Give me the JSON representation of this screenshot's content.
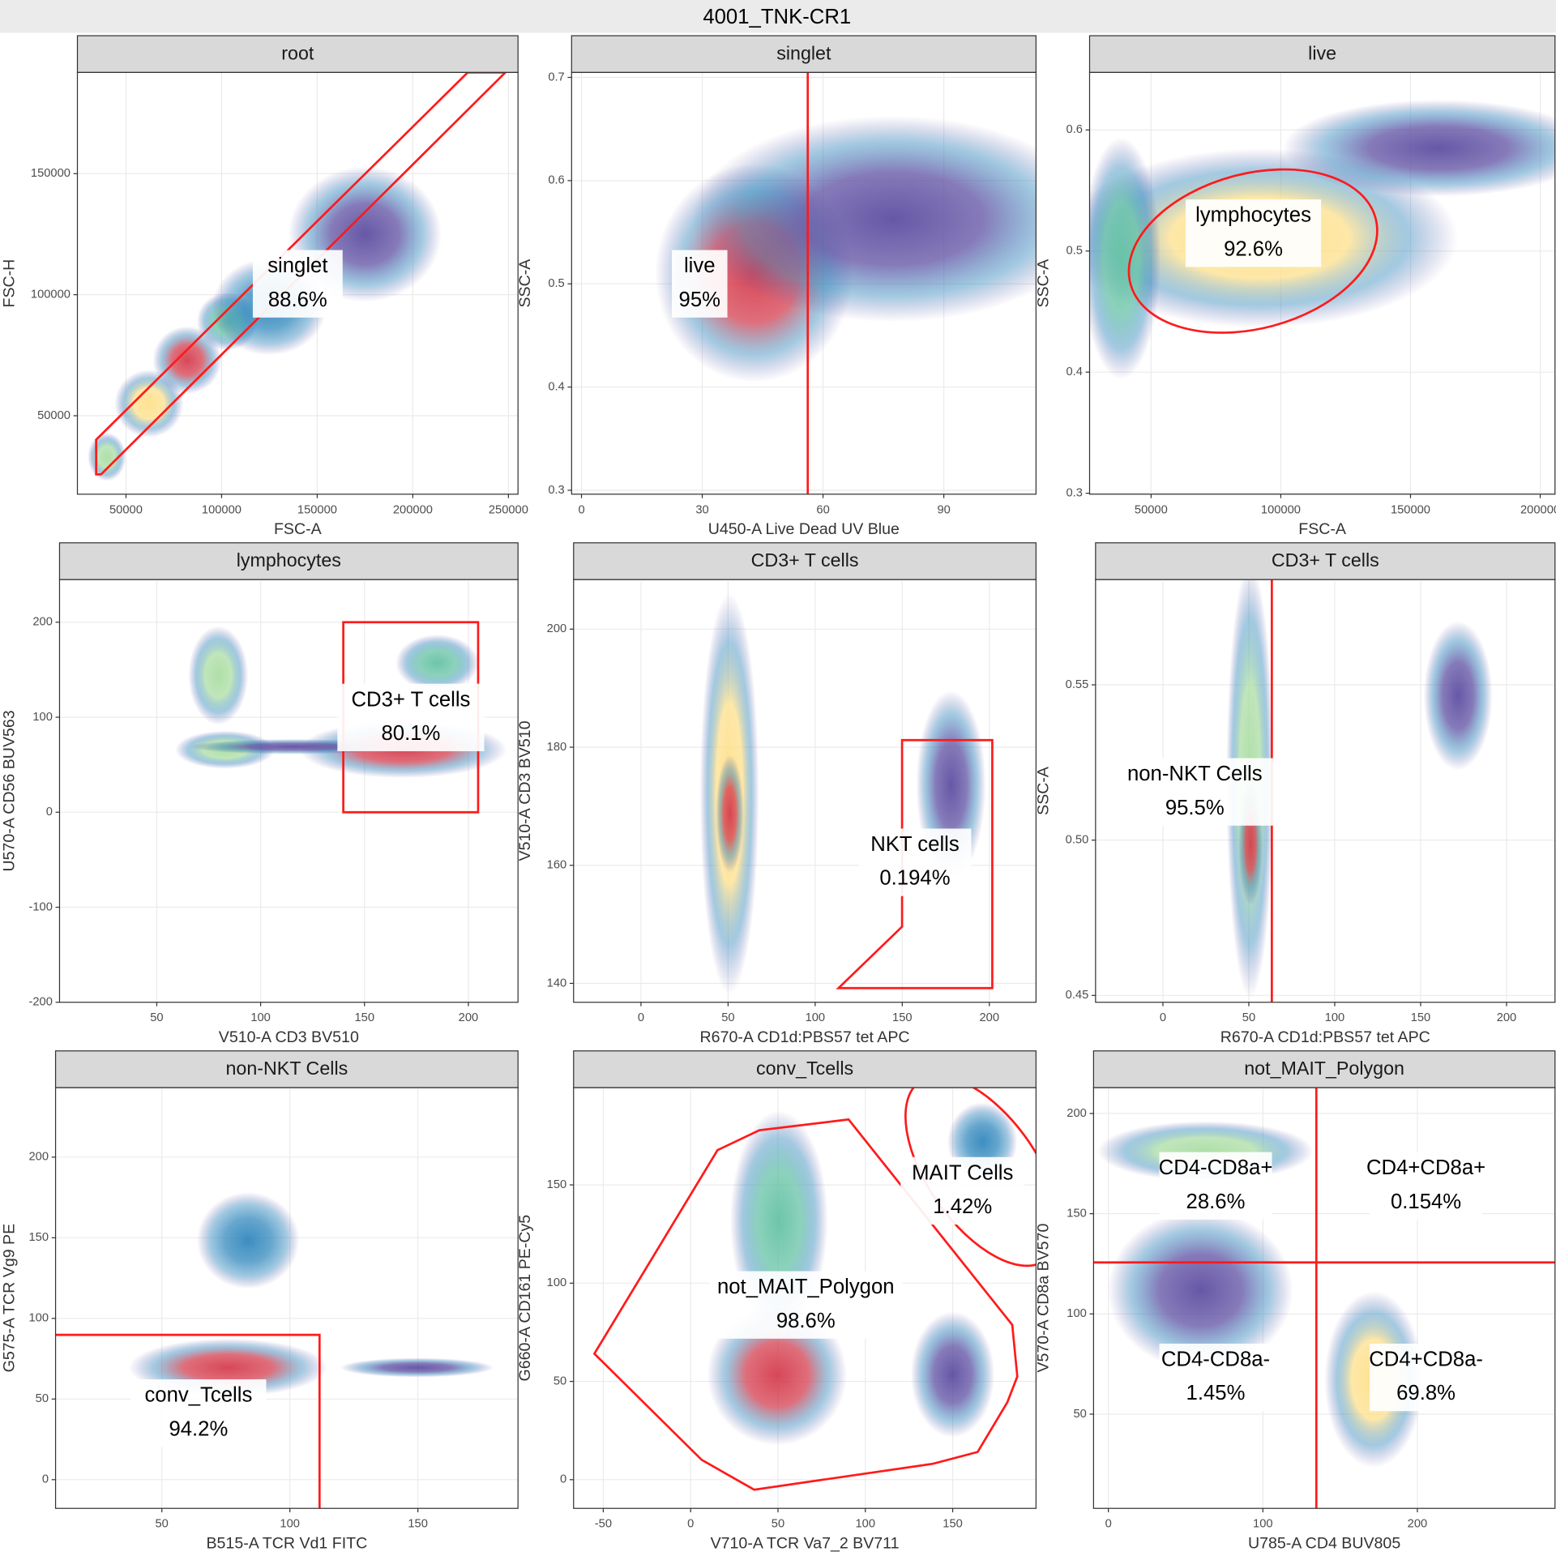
{
  "title": "4001_TNK-CR1",
  "chart_data": [
    {
      "type": "scatter",
      "title": "root",
      "x_label": "FSC-A",
      "y_label": "FSC-H",
      "xlim": [
        24600,
        255000
      ],
      "ylim": [
        17600,
        191800
      ],
      "xticks": [
        50000,
        100000,
        150000,
        200000,
        250000
      ],
      "yticks": [
        50000,
        100000,
        150000
      ],
      "grid": true,
      "clusters": [
        {
          "x": 40000,
          "y": 33000,
          "sx": 5000,
          "sy": 5000,
          "color": "#abdda4"
        },
        {
          "x": 62000,
          "y": 55000,
          "sx": 9000,
          "sy": 7000,
          "color": "#fee08b"
        },
        {
          "x": 82000,
          "y": 73000,
          "sx": 9000,
          "sy": 7000,
          "color": "#d53e4f"
        },
        {
          "x": 103000,
          "y": 89000,
          "sx": 8000,
          "sy": 6000,
          "color": "#66c2a5"
        },
        {
          "x": 125000,
          "y": 95000,
          "sx": 15000,
          "sy": 10000,
          "color": "#3288bd"
        },
        {
          "x": 175000,
          "y": 125000,
          "sx": 20000,
          "sy": 14000,
          "color": "#5e4fa2"
        }
      ],
      "gates": [
        {
          "name": "singlet",
          "value": 88.6,
          "value_label": "88.6%",
          "shape": "polygon",
          "points": [
            [
              34400,
              25800
            ],
            [
              34400,
              40100
            ],
            [
              228700,
              191800
            ],
            [
              248400,
              191800
            ],
            [
              37000,
              25800
            ]
          ]
        }
      ]
    },
    {
      "type": "scatter",
      "title": "singlet",
      "x_label": "U450-A Live Dead UV Blue",
      "y_label": "SSC-A",
      "xlim": [
        -2.46,
        112.9
      ],
      "ylim": [
        0.2962,
        0.7048
      ],
      "xticks": [
        0,
        30,
        60,
        90
      ],
      "yticks": [
        0.3,
        0.4,
        0.5,
        0.6,
        0.7
      ],
      "grid": true,
      "clusters": [
        {
          "x": 42.9,
          "y": 0.5106,
          "sx": 12.3,
          "sy": 0.053,
          "color": "#d53e4f"
        },
        {
          "x": 77.4,
          "y": 0.563,
          "sx": 25,
          "sy": 0.05,
          "color": "#5e4fa2"
        }
      ],
      "gates": [
        {
          "name": "live",
          "value": 95,
          "value_label": "95%",
          "shape": "vline",
          "x": 56.2
        }
      ]
    },
    {
      "type": "scatter",
      "title": "live",
      "x_label": "FSC-A",
      "y_label": "SSC-A",
      "xlim": [
        26300,
        205700
      ],
      "ylim": [
        0.2992,
        0.6475
      ],
      "xticks": [
        50000,
        100000,
        150000,
        200000
      ],
      "yticks": [
        0.3,
        0.4,
        0.5,
        0.6
      ],
      "grid": true,
      "clusters": [
        {
          "x": 91950,
          "y": 0.5107,
          "sx": 38200,
          "sy": 0.037,
          "color": "#fee08b"
        },
        {
          "x": 38500,
          "y": 0.494,
          "sx": 7600,
          "sy": 0.05,
          "color": "#66c2a5"
        },
        {
          "x": 160700,
          "y": 0.585,
          "sx": 30000,
          "sy": 0.02,
          "color": "#5e4fa2"
        }
      ],
      "gates": [
        {
          "name": "lymphocytes",
          "value": 92.6,
          "value_label": "92.6%",
          "shape": "ellipse",
          "cx": 89300,
          "cy": 0.5,
          "rx": 48900,
          "ry": 0.0639,
          "angle": -15
        }
      ]
    },
    {
      "type": "scatter",
      "title": "lymphocytes",
      "x_label": "V510-A CD3 BV510",
      "y_label": "U570-A CD56 BUV563",
      "xlim": [
        3.2,
        223.9
      ],
      "ylim": [
        -200,
        244.9
      ],
      "xticks": [
        50,
        100,
        150,
        200
      ],
      "yticks": [
        -200,
        -100,
        0,
        100,
        200
      ],
      "grid": true,
      "clusters": [
        {
          "x": 79.6,
          "y": 144,
          "sx": 7.2,
          "sy": 26,
          "color": "#abdda4"
        },
        {
          "x": 82.9,
          "y": 65.8,
          "sx": 12,
          "sy": 10,
          "color": "#abdda4"
        },
        {
          "x": 168.6,
          "y": 66,
          "sx": 25,
          "sy": 15,
          "color": "#d53e4f"
        },
        {
          "x": 185,
          "y": 157,
          "sx": 10,
          "sy": 15,
          "color": "#66c2a5"
        },
        {
          "x": 116,
          "y": 69,
          "sx": 25,
          "sy": 4,
          "color": "#5e4fa2"
        }
      ],
      "gates": [
        {
          "name": "CD3+ T cells",
          "value": 80.1,
          "value_label": "80.1%",
          "shape": "polygon",
          "points": [
            [
              139.8,
              0
            ],
            [
              139.8,
              200
            ],
            [
              204.7,
              200
            ],
            [
              204.7,
              0
            ]
          ]
        }
      ]
    },
    {
      "type": "scatter",
      "title": "CD3+ T cells",
      "x_label": "R670-A CD1d:PBS57 tet APC",
      "y_label": "V510-A CD3 BV510",
      "xlim": [
        -38.7,
        226.8
      ],
      "ylim": [
        136.8,
        208.4
      ],
      "xticks": [
        0,
        50,
        100,
        150,
        200
      ],
      "yticks": [
        140,
        160,
        180,
        200
      ],
      "grid": true,
      "clusters": [
        {
          "x": 50.8,
          "y": 172.1,
          "sx": 8.5,
          "sy": 17,
          "color": "#fee08b"
        },
        {
          "x": 51,
          "y": 168.7,
          "sx": 4,
          "sy": 5,
          "color": "#d53e4f"
        },
        {
          "x": 178,
          "y": 173.6,
          "sx": 10,
          "sy": 8,
          "color": "#5e4fa2"
        }
      ],
      "gates": [
        {
          "name": "NKT cells",
          "value": 0.194,
          "value_label": "0.194%",
          "shape": "polygon",
          "points": [
            [
              149.9,
              181.2
            ],
            [
              201.7,
              181.2
            ],
            [
              201.7,
              139.2
            ],
            [
              113.4,
              139.2
            ],
            [
              149.9,
              149.6
            ]
          ]
        }
      ]
    },
    {
      "type": "scatter",
      "title": "CD3+ T cells",
      "x_label": "R670-A CD1d:PBS57 tet APC",
      "y_label": "SSC-A",
      "xlim": [
        -39.2,
        228.2
      ],
      "ylim": [
        0.4478,
        0.5839
      ],
      "xticks": [
        0,
        50,
        100,
        150,
        200
      ],
      "yticks": [
        0.45,
        {
          "value": 0.5,
          "label": "0.50"
        },
        0.55
      ],
      "grid": true,
      "clusters": [
        {
          "x": 50.7,
          "y": 0.519,
          "sx": 6.9,
          "sy": 0.035,
          "color": "#abdda4"
        },
        {
          "x": 51,
          "y": 0.499,
          "sx": 3.5,
          "sy": 0.01,
          "color": "#d53e4f"
        },
        {
          "x": 171.8,
          "y": 0.5465,
          "sx": 10,
          "sy": 0.012,
          "color": "#5e4fa2"
        }
      ],
      "gates": [
        {
          "name": "non-NKT Cells",
          "value": 95.5,
          "value_label": "95.5%",
          "shape": "vline",
          "x": 63.4
        }
      ]
    },
    {
      "type": "scatter",
      "title": "non-NKT Cells",
      "x_label": "B515-A TCR Vd1 FITC",
      "y_label": "G575-A TCR Vg9 PE",
      "xlim": [
        8.5,
        189.1
      ],
      "ylim": [
        -17.8,
        243.1
      ],
      "xticks": [
        50,
        100,
        150
      ],
      "yticks": [
        0,
        50,
        100,
        150,
        200
      ],
      "grid": true,
      "clusters": [
        {
          "x": 75.9,
          "y": 69.5,
          "sx": 19.4,
          "sy": 9,
          "color": "#d53e4f"
        },
        {
          "x": 83.7,
          "y": 148.3,
          "sx": 10,
          "sy": 15,
          "color": "#3288bd"
        },
        {
          "x": 149.6,
          "y": 69.5,
          "sx": 15,
          "sy": 3,
          "color": "#5e4fa2"
        }
      ],
      "gates": [
        {
          "name": "conv_Tcells",
          "value": 94.2,
          "value_label": "94.2%",
          "shape": "polygon",
          "points": [
            [
              0,
              -20
            ],
            [
              0,
              89.8
            ],
            [
              111.6,
              89.8
            ],
            [
              111.6,
              -20
            ]
          ]
        }
      ]
    },
    {
      "type": "scatter",
      "title": "conv_Tcells",
      "x_label": "V710-A TCR Va7_2 BV711",
      "y_label": "G660-A CD161 PE-Cy5",
      "xlim": [
        -67,
        197.7
      ],
      "ylim": [
        -14.6,
        199.5
      ],
      "xticks": [
        -50,
        0,
        50,
        100,
        150
      ],
      "yticks": [
        0,
        50,
        100,
        150
      ],
      "grid": true,
      "clusters": [
        {
          "x": 50.6,
          "y": 131.8,
          "sx": 14,
          "sy": 28,
          "color": "#66c2a5"
        },
        {
          "x": 49.5,
          "y": 53.5,
          "sx": 20,
          "sy": 18,
          "color": "#d53e4f"
        },
        {
          "x": 150,
          "y": 53.5,
          "sx": 12,
          "sy": 16,
          "color": "#5e4fa2"
        },
        {
          "x": 167,
          "y": 172,
          "sx": 10,
          "sy": 10,
          "color": "#3288bd"
        }
      ],
      "gates": [
        {
          "name": "not_MAIT_Polygon",
          "value": 98.6,
          "value_label": "98.6%",
          "shape": "polygon",
          "points": [
            [
              -55.1,
              64.1
            ],
            [
              15.4,
              167.7
            ],
            [
              39.3,
              177.8
            ],
            [
              90.4,
              183.3
            ],
            [
              184.1,
              78.8
            ],
            [
              187.0,
              52.5
            ],
            [
              181.3,
              39.4
            ],
            [
              164.3,
              14.1
            ],
            [
              138.7,
              8.1
            ],
            [
              36.4,
              -5.1
            ],
            [
              6.3,
              10.1
            ]
          ]
        },
        {
          "name": "MAIT Cells",
          "value": 1.42,
          "value_label": "1.42%",
          "shape": "ellipse",
          "cx": 167.1,
          "cy": 157.1,
          "rx": 31.3,
          "ry": 55.6,
          "angle": -35
        }
      ]
    },
    {
      "type": "scatter",
      "title": "not_MAIT_Polygon",
      "x_label": "U785-A CD4 BUV805",
      "y_label": "V570-A CD8a BV570",
      "xlim": [
        -9.6,
        289.1
      ],
      "ylim": [
        3.0,
        212.9
      ],
      "xticks": [
        0,
        100,
        200
      ],
      "yticks": [
        50,
        100,
        150,
        200
      ],
      "grid": true,
      "quadrant": {
        "x": 134.6,
        "y": 125.7
      },
      "clusters": [
        {
          "x": 62.8,
          "y": 181.2,
          "sx": 35,
          "sy": 7.5,
          "color": "#abdda4"
        },
        {
          "x": 171.8,
          "y": 67.3,
          "sx": 16,
          "sy": 22,
          "color": "#fee08b"
        },
        {
          "x": 59.6,
          "y": 111.9,
          "sx": 30,
          "sy": 20,
          "color": "#5e4fa2"
        }
      ],
      "gates": [
        {
          "name": "CD4-CD8a+",
          "value": 28.6,
          "value_label": "28.6%",
          "shape": "quadrant"
        },
        {
          "name": "CD4+CD8a+",
          "value": 0.154,
          "value_label": "0.154%",
          "shape": "quadrant"
        },
        {
          "name": "CD4-CD8a-",
          "value": 1.45,
          "value_label": "1.45%",
          "shape": "quadrant"
        },
        {
          "name": "CD4+CD8a-",
          "value": 69.8,
          "value_label": "69.8%",
          "shape": "quadrant"
        }
      ]
    }
  ]
}
